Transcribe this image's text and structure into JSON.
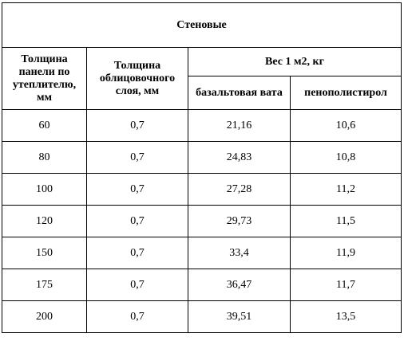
{
  "table": {
    "title": "Стеновые",
    "header": {
      "thickness_panel": "Толщина панели по утеплителю, мм",
      "thickness_facing": "Толщина облицовочного слоя, мм",
      "weight": "Вес 1 м2, кг",
      "basalt": "базальтовая вата",
      "polystyrene": "пенополистирол"
    },
    "rows": [
      [
        "60",
        "0,7",
        "21,16",
        "10,6"
      ],
      [
        "80",
        "0,7",
        "24,83",
        "10,8"
      ],
      [
        "100",
        "0,7",
        "27,28",
        "11,2"
      ],
      [
        "120",
        "0,7",
        "29,73",
        "11,5"
      ],
      [
        "150",
        "0,7",
        "33,4",
        "11,9"
      ],
      [
        "175",
        "0,7",
        "36,47",
        "11,7"
      ],
      [
        "200",
        "0,7",
        "39,51",
        "13,5"
      ]
    ]
  }
}
